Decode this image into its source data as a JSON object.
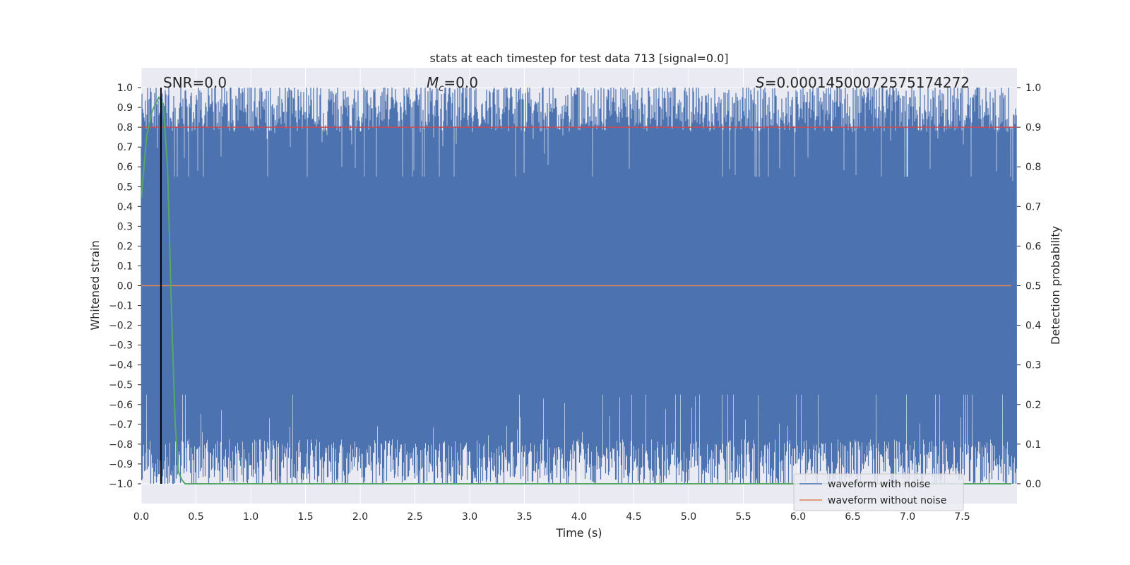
{
  "chart_data": {
    "type": "line",
    "title": "stats at each timestep for test data 713 [signal=0.0]",
    "xlabel": "Time (s)",
    "ylabel_left": "Whitened strain",
    "ylabel_right": "Detection probability",
    "xlim": [
      0.0,
      8.0
    ],
    "ylim_left": [
      -1.1,
      1.1
    ],
    "ylim_right": [
      -0.05,
      1.05
    ],
    "x_ticks": [
      "0.0",
      "0.5",
      "1.0",
      "1.5",
      "2.0",
      "2.5",
      "3.0",
      "3.5",
      "4.0",
      "4.5",
      "5.0",
      "5.5",
      "6.0",
      "6.5",
      "7.0",
      "7.5"
    ],
    "y_left_ticks": [
      "1.0",
      "0.9",
      "0.8",
      "0.7",
      "0.6",
      "0.5",
      "0.4",
      "0.3",
      "0.2",
      "0.1",
      "0.0",
      "−0.1",
      "−0.2",
      "−0.3",
      "−0.4",
      "−0.5",
      "−0.6",
      "−0.7",
      "−0.8",
      "−0.9",
      "−1.0"
    ],
    "y_right_ticks": [
      "1.0",
      "0.9",
      "0.8",
      "0.7",
      "0.6",
      "0.5",
      "0.4",
      "0.3",
      "0.2",
      "0.1",
      "0.0"
    ],
    "grid": true,
    "background": "#eaeaf2",
    "annotations": {
      "snr": "SNR=0.0",
      "mc_symbol": "M",
      "mc_sub": "c",
      "mc_value": "=0.0",
      "s_symbol": "S",
      "s_value": "=0.00014500072575174272"
    },
    "series": [
      {
        "name": "waveform with noise",
        "color": "#4c72b0",
        "description_range": [
          -1.0,
          1.0
        ],
        "band_top_typical": 0.85,
        "band_bottom_typical": -0.85
      },
      {
        "name": "waveform without noise",
        "color": "#dd8452",
        "values_x": [
          0.0,
          7.95
        ],
        "values_y": [
          0.0,
          0.0
        ]
      },
      {
        "color": "#55a868",
        "axis": "right",
        "x": [
          0.0,
          0.05,
          0.1,
          0.13,
          0.16,
          0.2,
          0.24,
          0.28,
          0.31,
          0.34,
          0.37,
          0.4,
          1.0,
          7.95
        ],
        "y": [
          0.72,
          0.88,
          0.94,
          0.96,
          0.975,
          0.96,
          0.8,
          0.4,
          0.15,
          0.03,
          0.01,
          0.0,
          0.0,
          0.0
        ]
      },
      {
        "color": "#000000",
        "type": "vline",
        "x": 0.18
      },
      {
        "color": "#c44e52",
        "type": "hline",
        "axis": "right",
        "y": 0.9
      }
    ],
    "legend": {
      "placement": "lower-right",
      "entries": [
        "waveform with noise",
        "waveform without noise"
      ]
    }
  }
}
